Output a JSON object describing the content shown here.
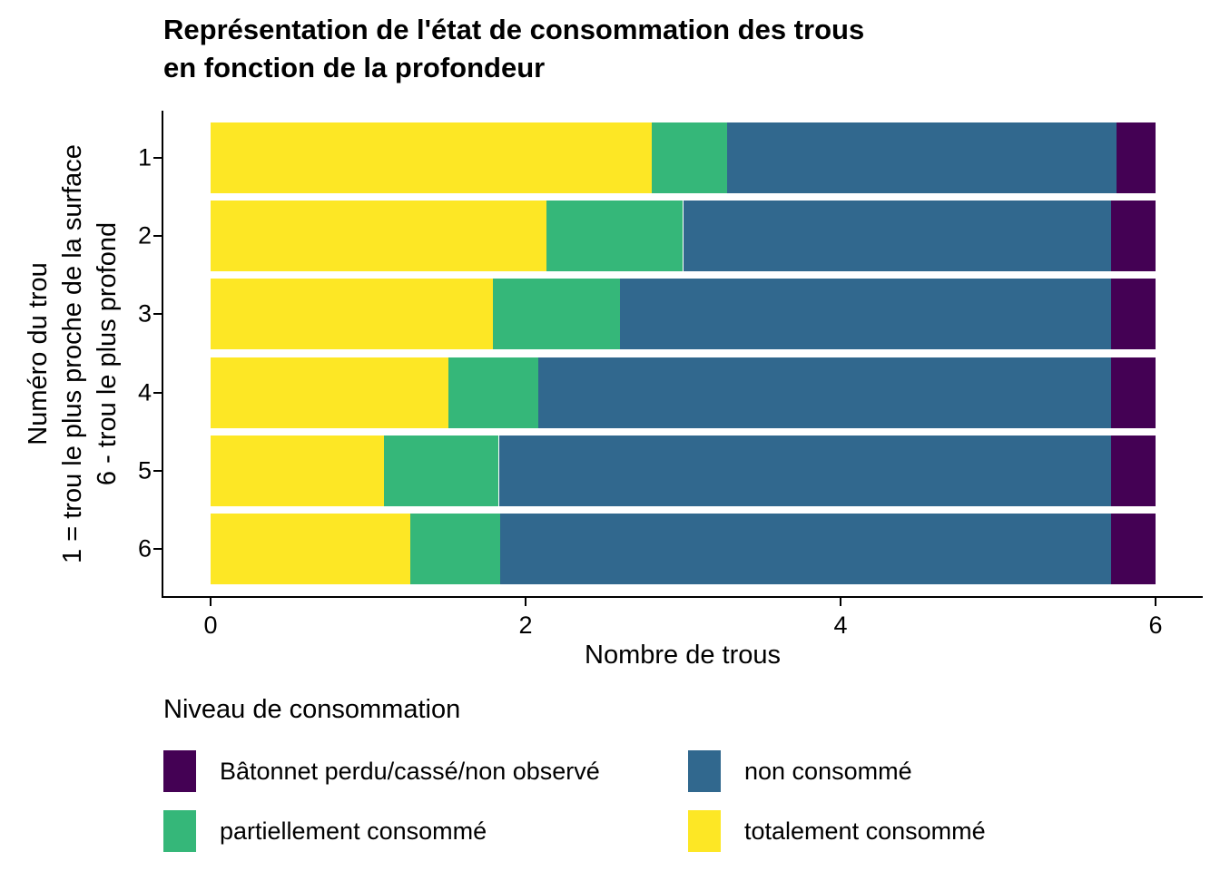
{
  "title": {
    "line1": "Représentation de l'état de consommation des trous",
    "line2": "en fonction de la profondeur"
  },
  "axes": {
    "x": {
      "label": "Nombre de trous",
      "ticks": [
        {
          "value": 0,
          "label": "0"
        },
        {
          "value": 2,
          "label": "2"
        },
        {
          "value": 4,
          "label": "4"
        },
        {
          "value": 6,
          "label": "6"
        }
      ],
      "range": [
        0,
        6
      ]
    },
    "y": {
      "label_lines": [
        "Numéro du trou",
        "1 = trou le plus proche de la surface",
        "6 - trou le plus profond"
      ],
      "ticks": [
        "1",
        "2",
        "3",
        "4",
        "5",
        "6"
      ]
    }
  },
  "legend": {
    "title": "Niveau de consommation",
    "items": [
      {
        "label": "Bâtonnet perdu/cassé/non observé",
        "color": "#440154"
      },
      {
        "label": "non consommé",
        "color": "#31688E"
      },
      {
        "label": "partiellement consommé",
        "color": "#35B779"
      },
      {
        "label": "totalement consommé",
        "color": "#FDE725"
      }
    ]
  },
  "chart_data": {
    "type": "bar",
    "orientation": "horizontal",
    "stacked": true,
    "title": "Représentation de l'état de consommation des trous en fonction de la profondeur",
    "xlabel": "Nombre de trous",
    "ylabel": "Numéro du trou — 1 = trou le plus proche de la surface, 6 - trou le plus profond",
    "xlim": [
      0,
      6
    ],
    "grid": false,
    "legend_position": "bottom",
    "categories": [
      "1",
      "2",
      "3",
      "4",
      "5",
      "6"
    ],
    "series": [
      {
        "name": "totalement consommé",
        "color": "#FDE725",
        "values": [
          2.8,
          2.13,
          1.79,
          1.51,
          1.1,
          1.27
        ]
      },
      {
        "name": "partiellement consommé",
        "color": "#35B779",
        "values": [
          0.48,
          0.87,
          0.81,
          0.57,
          0.73,
          0.57
        ]
      },
      {
        "name": "non consommé",
        "color": "#31688E",
        "values": [
          2.47,
          2.72,
          3.12,
          3.64,
          3.89,
          3.88
        ]
      },
      {
        "name": "Bâtonnet perdu/cassé/non observé",
        "color": "#440154",
        "values": [
          0.25,
          0.28,
          0.28,
          0.28,
          0.28,
          0.28
        ]
      }
    ]
  }
}
